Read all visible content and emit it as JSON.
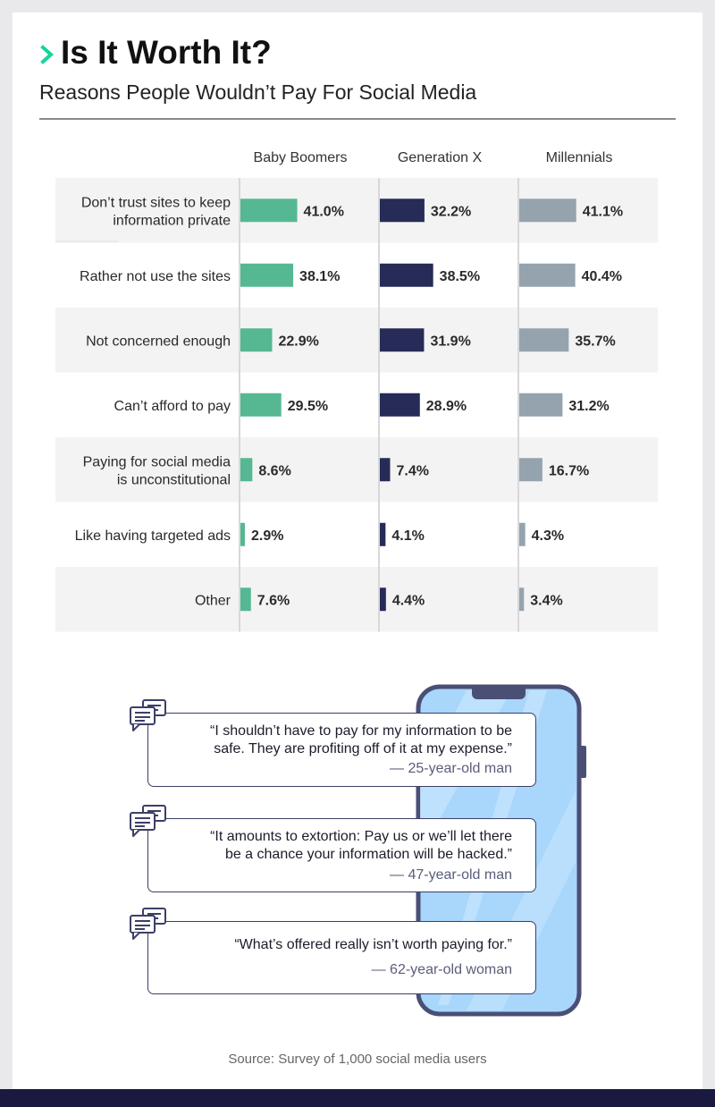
{
  "header": {
    "title": "Is It Worth It?",
    "subtitle": "Reasons People Wouldn’t Pay For Social Media"
  },
  "chart_data": {
    "type": "bar",
    "orientation": "horizontal",
    "title": "Is It Worth It?",
    "subtitle": "Reasons People Wouldn’t Pay For Social Media",
    "value_suffix": "%",
    "xlim": [
      0,
      100
    ],
    "categories": [
      "Don’t trust sites to keep information private",
      "Rather not use the sites",
      "Not concerned enough",
      "Can’t afford to pay",
      "Paying for social media is unconstitutional",
      "Like having targeted ads",
      "Other"
    ],
    "category_lines": [
      [
        "Don’t trust sites to keep",
        "information private"
      ],
      [
        "Rather not use the sites"
      ],
      [
        "Not concerned enough"
      ],
      [
        "Can’t afford to pay"
      ],
      [
        "Paying for social media",
        "is unconstitutional"
      ],
      [
        "Like having targeted ads"
      ],
      [
        "Other"
      ]
    ],
    "series": [
      {
        "name": "Baby Boomers",
        "color": "#55b892",
        "values": [
          41.0,
          38.1,
          22.9,
          29.5,
          8.6,
          2.9,
          7.6
        ]
      },
      {
        "name": "Generation X",
        "color": "#262b58",
        "values": [
          32.2,
          38.5,
          31.9,
          28.9,
          7.4,
          4.1,
          4.4
        ]
      },
      {
        "name": "Millennials",
        "color": "#95a3ae",
        "values": [
          41.1,
          40.4,
          35.7,
          31.2,
          16.7,
          4.3,
          3.4
        ]
      }
    ]
  },
  "quotes": [
    {
      "text": "“I shouldn’t have to pay for my information to be safe. They are profiting off of it at my expense.”",
      "lines": [
        "“I shouldn’t have to pay for my information to be",
        "safe. They are profiting off of it at my expense.”"
      ],
      "attribution": "— 25-year-old man"
    },
    {
      "text": "“It amounts to extortion: Pay us or we’ll let there be a chance your information will be hacked.”",
      "lines": [
        "“It amounts to extortion: Pay us or we’ll let there",
        "be a chance your information will be hacked.”"
      ],
      "attribution": "— 47-year-old man"
    },
    {
      "text": "“What’s offered really isn’t worth paying for.”",
      "lines": [
        "“What’s offered really isn’t worth paying for.”"
      ],
      "attribution": "— 62-year-old woman"
    }
  ],
  "footer": {
    "source": "Source: Survey of 1,000 social media users"
  },
  "colors": {
    "accent": "#18d39a",
    "navy": "#1a1940",
    "phone_screen": "#a9d6fb",
    "phone_frame": "#4a4f75"
  },
  "icons": [
    "chevron-right-icon",
    "chat-bubbles-icon",
    "smartphone-icon"
  ]
}
